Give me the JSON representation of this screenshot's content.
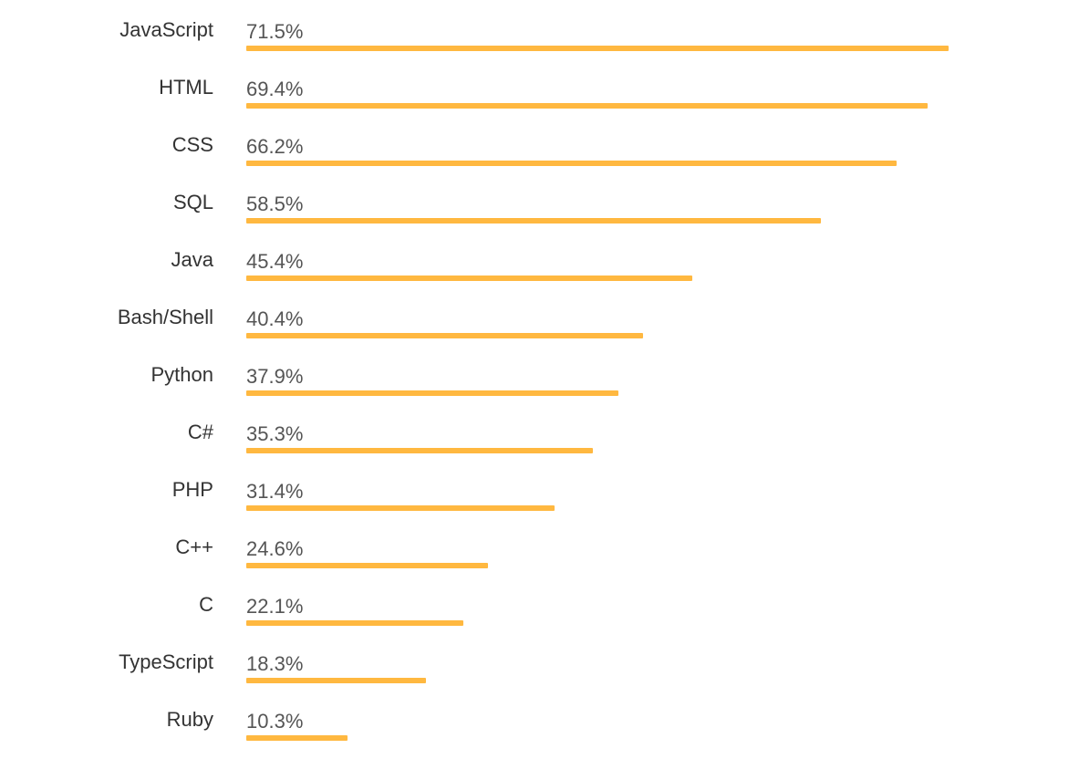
{
  "chart_data": {
    "type": "bar",
    "orientation": "horizontal",
    "title": "",
    "xlabel": "",
    "ylabel": "",
    "categories": [
      "JavaScript",
      "HTML",
      "CSS",
      "SQL",
      "Java",
      "Bash/Shell",
      "Python",
      "C#",
      "PHP",
      "C++",
      "C",
      "TypeScript",
      "Ruby"
    ],
    "values": [
      71.5,
      69.4,
      66.2,
      58.5,
      45.4,
      40.4,
      37.9,
      35.3,
      31.4,
      24.6,
      22.1,
      18.3,
      10.3
    ],
    "value_labels": [
      "71.5%",
      "69.4%",
      "66.2%",
      "58.5%",
      "45.4%",
      "40.4%",
      "37.9%",
      "35.3%",
      "31.4%",
      "24.6%",
      "22.1%",
      "18.3%",
      "10.3%"
    ],
    "unit": "%",
    "xlim": [
      0,
      71.5
    ],
    "grid": false,
    "legend": "none",
    "bar_color": "#FFB840"
  }
}
